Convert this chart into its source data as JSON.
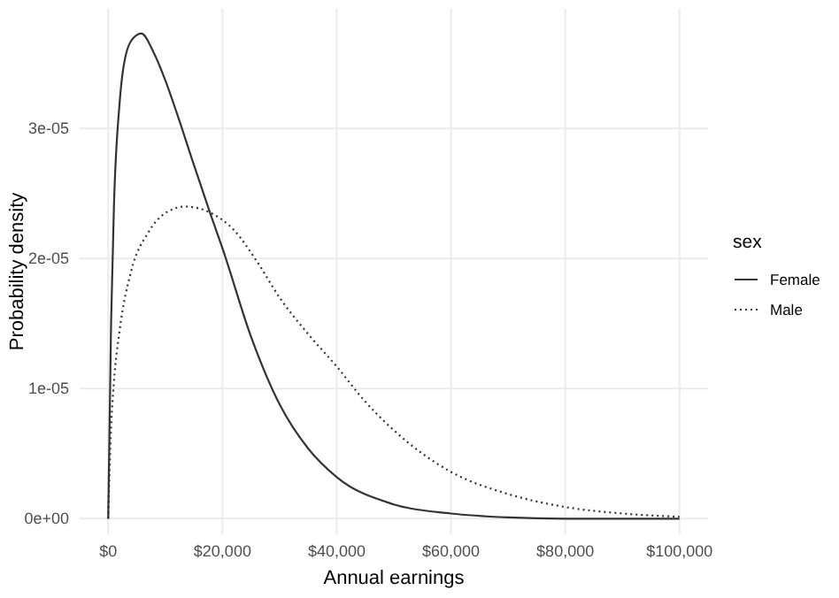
{
  "chart_data": {
    "type": "line",
    "xlabel": "Annual earnings",
    "ylabel": "Probability density",
    "legend_title": "sex",
    "legend": "right",
    "grid": true,
    "xlim": [
      -5000,
      105000
    ],
    "xticks": [
      {
        "value": 0,
        "label": "$0"
      },
      {
        "value": 20000,
        "label": "$20,000"
      },
      {
        "value": 40000,
        "label": "$40,000"
      },
      {
        "value": 60000,
        "label": "$60,000"
      },
      {
        "value": 80000,
        "label": "$80,000"
      },
      {
        "value": 100000,
        "label": "$100,000"
      }
    ],
    "ylim": [
      -1.2e-06,
      3.92e-05
    ],
    "yticks": [
      {
        "value": 0,
        "label": "0e+00"
      },
      {
        "value": 1e-05,
        "label": "1e-05"
      },
      {
        "value": 2e-05,
        "label": "2e-05"
      },
      {
        "value": 3e-05,
        "label": "3e-05"
      }
    ],
    "series": [
      {
        "name": "Female",
        "color": "#333333",
        "line_style": "solid",
        "x": [
          0,
          500,
          1000,
          2000,
          3000,
          4500,
          5800,
          8000,
          10000,
          12000,
          15000,
          18000,
          20000,
          25000,
          30000,
          35000,
          40000,
          50000,
          60000,
          70000,
          80000,
          100000
        ],
        "values": [
          0,
          1.5e-05,
          2.4e-05,
          3.2e-05,
          3.55e-05,
          3.7e-05,
          3.73e-05,
          3.58e-05,
          3.37e-05,
          3.12e-05,
          2.72e-05,
          2.33e-05,
          2.08e-05,
          1.4e-05,
          8.8e-06,
          5.4e-06,
          3.2e-06,
          1.1e-06,
          4e-07,
          1e-07,
          0,
          0
        ]
      },
      {
        "name": "Male",
        "color": "#333333",
        "line_style": "dotted",
        "x": [
          0,
          500,
          1000,
          2000,
          4000,
          7000,
          10000,
          13500,
          18000,
          22000,
          26000,
          30000,
          35000,
          40000,
          45000,
          50000,
          55000,
          60000,
          70000,
          80000,
          90000,
          100000
        ],
        "values": [
          0,
          7e-06,
          1.05e-05,
          1.45e-05,
          1.9e-05,
          2.2e-05,
          2.35e-05,
          2.4e-05,
          2.35e-05,
          2.22e-05,
          1.98e-05,
          1.7e-05,
          1.42e-05,
          1.17e-05,
          9e-06,
          6.8e-06,
          5e-06,
          3.6e-06,
          1.9e-06,
          9e-07,
          4e-07,
          1.5e-07
        ]
      }
    ]
  }
}
